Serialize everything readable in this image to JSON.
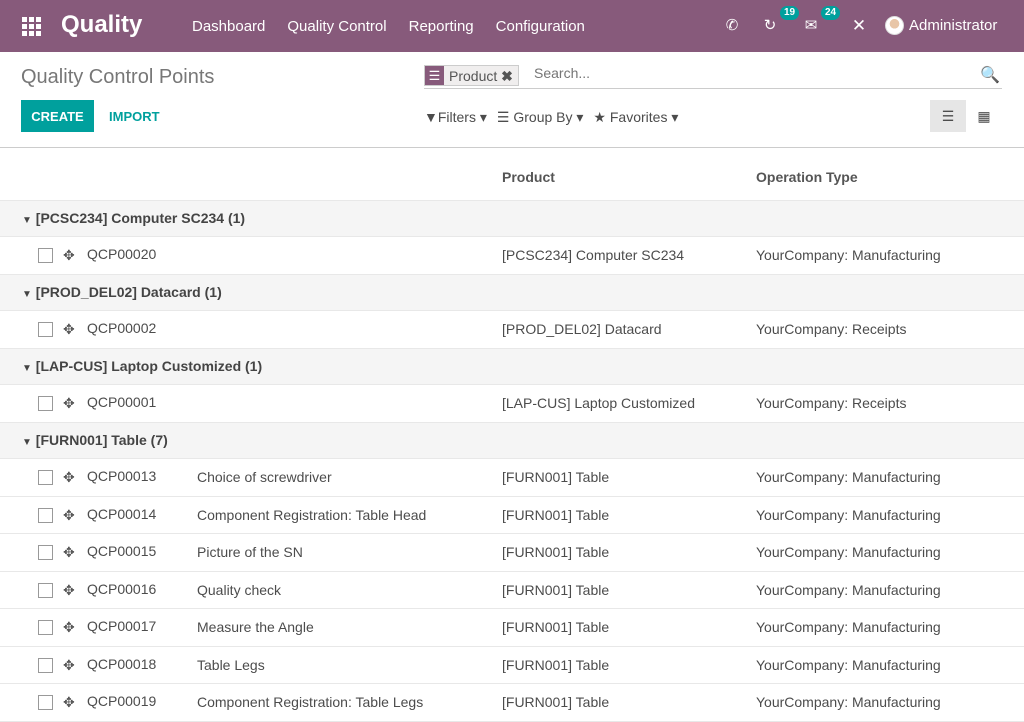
{
  "nav": {
    "brand": "Quality",
    "menu": [
      "Dashboard",
      "Quality Control",
      "Reporting",
      "Configuration"
    ],
    "activity_count": "19",
    "messages_count": "24",
    "user": "Administrator",
    "color": "#875A7B"
  },
  "control": {
    "title": "Quality Control Points",
    "facet": "Product",
    "search_placeholder": "Search...",
    "create": "CREATE",
    "import": "IMPORT",
    "filters": "Filters",
    "group_by": "Group By",
    "favorites": "Favorites",
    "accent": "#00A09D"
  },
  "table": {
    "headers": {
      "product": "Product",
      "operation": "Operation Type"
    },
    "groups": [
      {
        "label": "[PCSC234] Computer SC234 (1)",
        "rows": [
          {
            "ref": "QCP00020",
            "title": "",
            "product": "[PCSC234] Computer SC234",
            "op": "YourCompany: Manufacturing"
          }
        ]
      },
      {
        "label": "[PROD_DEL02] Datacard (1)",
        "rows": [
          {
            "ref": "QCP00002",
            "title": "",
            "product": "[PROD_DEL02] Datacard",
            "op": "YourCompany: Receipts"
          }
        ]
      },
      {
        "label": "[LAP-CUS] Laptop Customized (1)",
        "rows": [
          {
            "ref": "QCP00001",
            "title": "",
            "product": "[LAP-CUS] Laptop Customized",
            "op": "YourCompany: Receipts"
          }
        ]
      },
      {
        "label": "[FURN001] Table (7)",
        "rows": [
          {
            "ref": "QCP00013",
            "title": "Choice of screwdriver",
            "product": "[FURN001] Table",
            "op": "YourCompany: Manufacturing"
          },
          {
            "ref": "QCP00014",
            "title": "Component Registration: Table Head",
            "product": "[FURN001] Table",
            "op": "YourCompany: Manufacturing"
          },
          {
            "ref": "QCP00015",
            "title": "Picture of the SN",
            "product": "[FURN001] Table",
            "op": "YourCompany: Manufacturing"
          },
          {
            "ref": "QCP00016",
            "title": "Quality check",
            "product": "[FURN001] Table",
            "op": "YourCompany: Manufacturing"
          },
          {
            "ref": "QCP00017",
            "title": "Measure the Angle",
            "product": "[FURN001] Table",
            "op": "YourCompany: Manufacturing"
          },
          {
            "ref": "QCP00018",
            "title": "Table Legs",
            "product": "[FURN001] Table",
            "op": "YourCompany: Manufacturing"
          },
          {
            "ref": "QCP00019",
            "title": "Component Registration: Table Legs",
            "product": "[FURN001] Table",
            "op": "YourCompany: Manufacturing"
          }
        ]
      }
    ]
  }
}
